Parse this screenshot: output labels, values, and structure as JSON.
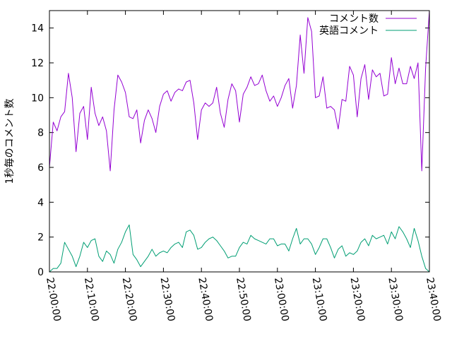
{
  "chart_data": {
    "type": "line",
    "title": "",
    "xlabel": "",
    "ylabel": "1秒毎のコメント数",
    "xlim": [
      "22:00:00",
      "23:40:00"
    ],
    "ylim": [
      0,
      15
    ],
    "x_tick_labels": [
      "22:00:00",
      "22:10:00",
      "22:20:00",
      "22:30:00",
      "22:40:00",
      "22:50:00",
      "23:00:00",
      "23:10:00",
      "23:20:00",
      "23:30:00",
      "23:40:00"
    ],
    "y_ticks": [
      0,
      2,
      4,
      6,
      8,
      10,
      12,
      14
    ],
    "y_tick_labels": [
      "0",
      "2",
      "4",
      "6",
      "8",
      "10",
      "12",
      "14"
    ],
    "grid": false,
    "legend_position": "top-right",
    "colors": {
      "series_0": "#9400d3",
      "series_1": "#009e73"
    },
    "series": [
      {
        "name": "コメント数",
        "x": [
          "22:00:00",
          "22:01:00",
          "22:02:00",
          "22:03:00",
          "22:04:00",
          "22:05:00",
          "22:06:00",
          "22:07:00",
          "22:08:00",
          "22:09:00",
          "22:10:00",
          "22:11:00",
          "22:12:00",
          "22:13:00",
          "22:14:00",
          "22:15:00",
          "22:16:00",
          "22:17:00",
          "22:18:00",
          "22:19:00",
          "22:20:00",
          "22:21:00",
          "22:22:00",
          "22:23:00",
          "22:24:00",
          "22:25:00",
          "22:26:00",
          "22:27:00",
          "22:28:00",
          "22:29:00",
          "22:30:00",
          "22:31:00",
          "22:32:00",
          "22:33:00",
          "22:34:00",
          "22:35:00",
          "22:36:00",
          "22:37:00",
          "22:38:00",
          "22:39:00",
          "22:40:00",
          "22:41:00",
          "22:42:00",
          "22:43:00",
          "22:44:00",
          "22:45:00",
          "22:46:00",
          "22:47:00",
          "22:48:00",
          "22:49:00",
          "22:50:00",
          "22:51:00",
          "22:52:00",
          "22:53:00",
          "22:54:00",
          "22:55:00",
          "22:56:00",
          "22:57:00",
          "22:58:00",
          "22:59:00",
          "23:00:00",
          "23:01:00",
          "23:02:00",
          "23:03:00",
          "23:04:00",
          "23:05:00",
          "23:06:00",
          "23:07:00",
          "23:08:00",
          "23:09:00",
          "23:10:00",
          "23:11:00",
          "23:12:00",
          "23:13:00",
          "23:14:00",
          "23:15:00",
          "23:16:00",
          "23:17:00",
          "23:18:00",
          "23:19:00",
          "23:20:00",
          "23:21:00",
          "23:22:00",
          "23:23:00",
          "23:24:00",
          "23:25:00",
          "23:26:00",
          "23:27:00",
          "23:28:00",
          "23:29:00",
          "23:30:00",
          "23:31:00",
          "23:32:00",
          "23:33:00",
          "23:34:00",
          "23:35:00",
          "23:36:00",
          "23:37:00",
          "23:38:00",
          "23:39:00",
          "23:40:00"
        ],
        "values": [
          6.0,
          8.6,
          8.1,
          8.9,
          9.2,
          11.4,
          10.0,
          6.9,
          9.1,
          9.5,
          7.6,
          10.6,
          9.1,
          8.4,
          8.9,
          8.1,
          5.8,
          9.3,
          11.3,
          10.9,
          10.3,
          8.9,
          8.8,
          9.3,
          7.4,
          8.7,
          9.3,
          8.8,
          8.0,
          9.5,
          10.2,
          10.4,
          9.8,
          10.3,
          10.5,
          10.4,
          10.9,
          11.0,
          9.7,
          7.6,
          9.3,
          9.7,
          9.5,
          9.7,
          10.6,
          9.1,
          8.3,
          9.9,
          10.8,
          10.4,
          8.6,
          10.2,
          10.6,
          11.2,
          10.7,
          10.8,
          11.3,
          10.4,
          9.8,
          10.1,
          9.5,
          10.0,
          10.7,
          11.1,
          9.4,
          10.7,
          13.6,
          11.4,
          14.6,
          13.8,
          10.0,
          10.1,
          11.2,
          9.4,
          9.5,
          9.3,
          8.2,
          9.9,
          9.8,
          11.8,
          11.3,
          8.9,
          11.1,
          11.9,
          9.9,
          11.6,
          11.2,
          11.4,
          10.1,
          10.2,
          12.3,
          10.8,
          11.7,
          10.8,
          10.8,
          11.8,
          11.1,
          12.0,
          5.8,
          11.7,
          15.0
        ]
      },
      {
        "name": "英語コメント",
        "x": [
          "22:00:00",
          "22:01:00",
          "22:02:00",
          "22:03:00",
          "22:04:00",
          "22:05:00",
          "22:06:00",
          "22:07:00",
          "22:08:00",
          "22:09:00",
          "22:10:00",
          "22:11:00",
          "22:12:00",
          "22:13:00",
          "22:14:00",
          "22:15:00",
          "22:16:00",
          "22:17:00",
          "22:18:00",
          "22:19:00",
          "22:20:00",
          "22:21:00",
          "22:22:00",
          "22:23:00",
          "22:24:00",
          "22:25:00",
          "22:26:00",
          "22:27:00",
          "22:28:00",
          "22:29:00",
          "22:30:00",
          "22:31:00",
          "22:32:00",
          "22:33:00",
          "22:34:00",
          "22:35:00",
          "22:36:00",
          "22:37:00",
          "22:38:00",
          "22:39:00",
          "22:40:00",
          "22:41:00",
          "22:42:00",
          "22:43:00",
          "22:44:00",
          "22:45:00",
          "22:46:00",
          "22:47:00",
          "22:48:00",
          "22:49:00",
          "22:50:00",
          "22:51:00",
          "22:52:00",
          "22:53:00",
          "22:54:00",
          "22:55:00",
          "22:56:00",
          "22:57:00",
          "22:58:00",
          "22:59:00",
          "23:00:00",
          "23:01:00",
          "23:02:00",
          "23:03:00",
          "23:04:00",
          "23:05:00",
          "23:06:00",
          "23:07:00",
          "23:08:00",
          "23:09:00",
          "23:10:00",
          "23:11:00",
          "23:12:00",
          "23:13:00",
          "23:14:00",
          "23:15:00",
          "23:16:00",
          "23:17:00",
          "23:18:00",
          "23:19:00",
          "23:20:00",
          "23:21:00",
          "23:22:00",
          "23:23:00",
          "23:24:00",
          "23:25:00",
          "23:26:00",
          "23:27:00",
          "23:28:00",
          "23:29:00",
          "23:30:00",
          "23:31:00",
          "23:32:00",
          "23:33:00",
          "23:34:00",
          "23:35:00",
          "23:36:00",
          "23:37:00",
          "23:38:00",
          "23:39:00",
          "23:40:00"
        ],
        "values": [
          0.0,
          0.2,
          0.2,
          0.5,
          1.7,
          1.3,
          0.9,
          0.3,
          0.9,
          1.7,
          1.4,
          1.8,
          1.9,
          0.9,
          0.6,
          1.2,
          1.0,
          0.5,
          1.3,
          1.7,
          2.3,
          2.7,
          1.0,
          0.7,
          0.3,
          0.6,
          0.9,
          1.3,
          0.9,
          1.1,
          1.2,
          1.1,
          1.4,
          1.6,
          1.7,
          1.4,
          2.3,
          2.4,
          2.1,
          1.3,
          1.4,
          1.7,
          1.9,
          2.0,
          1.8,
          1.5,
          1.2,
          0.8,
          0.9,
          0.9,
          1.4,
          1.7,
          1.6,
          2.1,
          1.9,
          1.8,
          1.7,
          1.6,
          1.9,
          1.9,
          1.5,
          1.6,
          1.6,
          1.2,
          1.9,
          2.5,
          1.6,
          1.9,
          1.9,
          1.6,
          1.0,
          1.4,
          1.9,
          1.9,
          1.4,
          0.8,
          1.3,
          1.5,
          0.9,
          1.1,
          1.0,
          1.2,
          1.7,
          1.9,
          1.5,
          2.1,
          1.9,
          2.0,
          2.1,
          1.6,
          2.3,
          1.9,
          2.6,
          2.3,
          1.9,
          1.4,
          2.5,
          1.8,
          0.9,
          0.2,
          0.0
        ]
      }
    ]
  }
}
